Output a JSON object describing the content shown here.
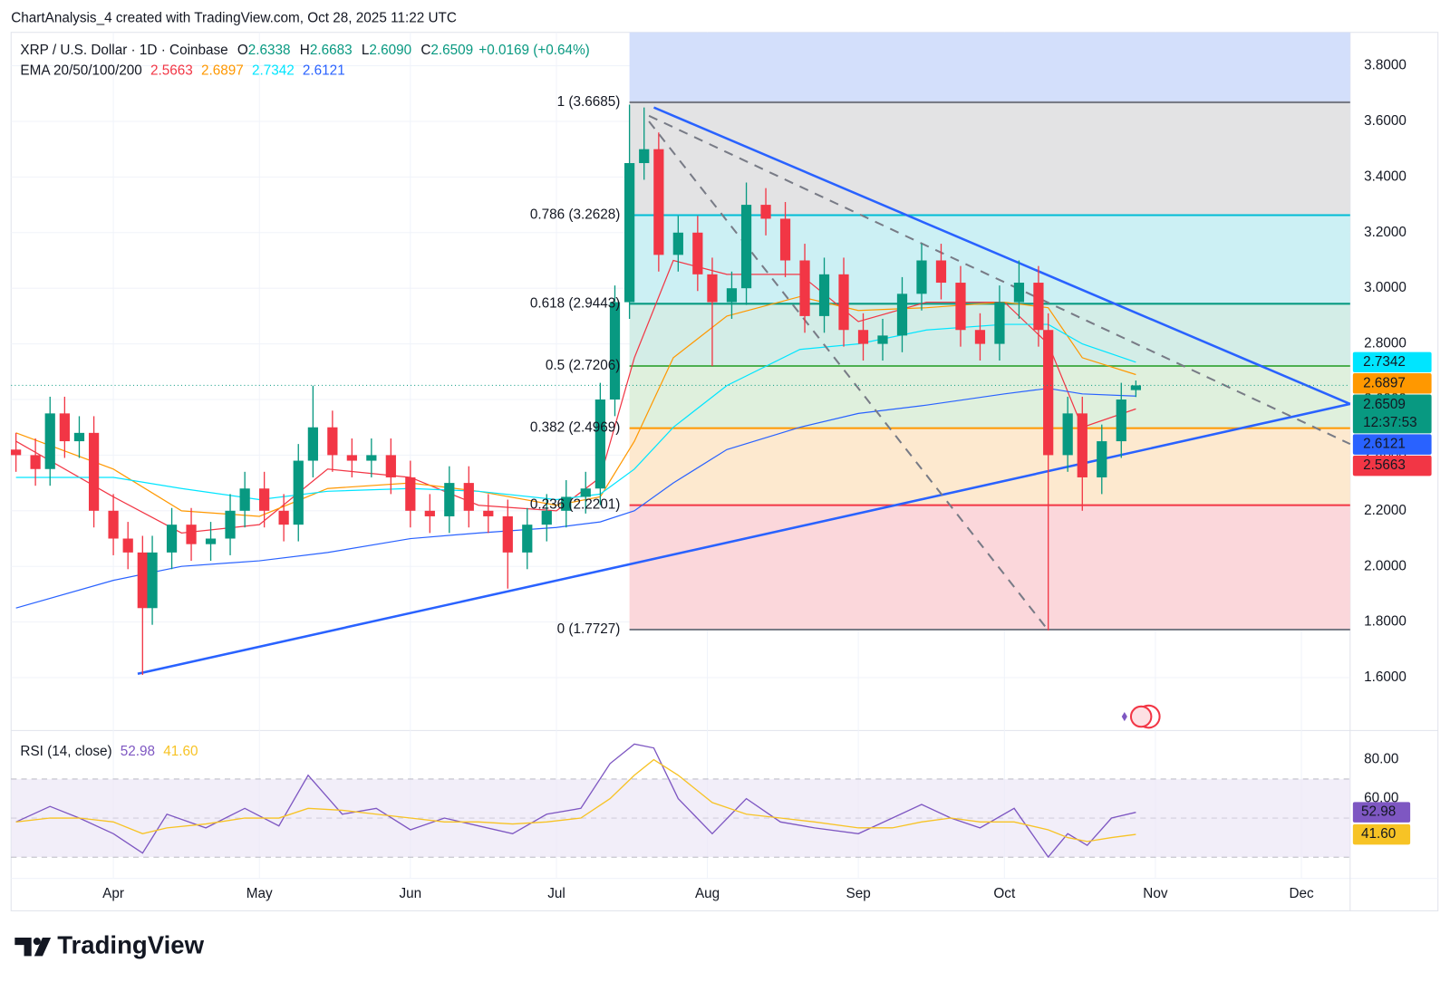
{
  "chart_data": {
    "type": "candlestick",
    "header": "ChartAnalysis_4 created with TradingView.com, Oct 28, 2025 11:22 UTC",
    "legend": {
      "symbol": "XRP / U.S. Dollar · 1D · Coinbase",
      "ohlc": [
        {
          "key": "O",
          "value": 2.6338
        },
        {
          "key": "H",
          "value": 2.6683
        },
        {
          "key": "L",
          "value": 2.609,
          "label": "2.6090"
        },
        {
          "key": "C",
          "value": 2.6509
        }
      ],
      "change": "+0.0169 (+0.64%)",
      "color": "#089981"
    },
    "xlim": [
      "2025-03-11",
      "2025-12-11"
    ],
    "xticks": [
      {
        "value": "2025-04-01",
        "label": "Apr"
      },
      {
        "value": "2025-05-01",
        "label": "May"
      },
      {
        "value": "2025-06-01",
        "label": "Jun"
      },
      {
        "value": "2025-07-01",
        "label": "Jul"
      },
      {
        "value": "2025-08-01",
        "label": "Aug"
      },
      {
        "value": "2025-09-01",
        "label": "Sep"
      },
      {
        "value": "2025-10-01",
        "label": "Oct"
      },
      {
        "value": "2025-11-01",
        "label": "Nov"
      },
      {
        "value": "2025-12-01",
        "label": "Dec"
      }
    ],
    "ylim": [
      1.41,
      3.92
    ],
    "yticks": [
      {
        "value": 1.6,
        "label": "1.6000"
      },
      {
        "value": 1.8,
        "label": "1.8000"
      },
      {
        "value": 2.0,
        "label": "2.0000"
      },
      {
        "value": 2.2,
        "label": "2.2000"
      },
      {
        "value": 2.4,
        "label": "2.4000"
      },
      {
        "value": 2.6,
        "label": "2.6000"
      },
      {
        "value": 2.8,
        "label": "2.8000"
      },
      {
        "value": 3.0,
        "label": "3.0000"
      },
      {
        "value": 3.2,
        "label": "3.2000"
      },
      {
        "value": 3.4,
        "label": "3.4000"
      },
      {
        "value": 3.6,
        "label": "3.6000"
      },
      {
        "value": 3.8,
        "label": "3.8000"
      }
    ],
    "grid": true,
    "up_color": "#089981",
    "down_color": "#f23645",
    "candles": {
      "x": [
        "2025-03-12",
        "2025-03-16",
        "2025-03-19",
        "2025-03-22",
        "2025-03-25",
        "2025-03-28",
        "2025-04-01",
        "2025-04-04",
        "2025-04-07",
        "2025-04-09",
        "2025-04-13",
        "2025-04-17",
        "2025-04-21",
        "2025-04-25",
        "2025-04-28",
        "2025-05-02",
        "2025-05-06",
        "2025-05-09",
        "2025-05-12",
        "2025-05-16",
        "2025-05-20",
        "2025-05-24",
        "2025-05-28",
        "2025-06-01",
        "2025-06-05",
        "2025-06-09",
        "2025-06-13",
        "2025-06-17",
        "2025-06-21",
        "2025-06-25",
        "2025-06-29",
        "2025-07-03",
        "2025-07-07",
        "2025-07-10",
        "2025-07-13",
        "2025-07-16",
        "2025-07-19",
        "2025-07-22",
        "2025-07-26",
        "2025-07-30",
        "2025-08-02",
        "2025-08-06",
        "2025-08-09",
        "2025-08-13",
        "2025-08-17",
        "2025-08-21",
        "2025-08-25",
        "2025-08-29",
        "2025-09-02",
        "2025-09-06",
        "2025-09-10",
        "2025-09-14",
        "2025-09-18",
        "2025-09-22",
        "2025-09-26",
        "2025-09-30",
        "2025-10-04",
        "2025-10-08",
        "2025-10-10",
        "2025-10-14",
        "2025-10-17",
        "2025-10-21",
        "2025-10-25",
        "2025-10-28"
      ],
      "open": [
        2.42,
        2.4,
        2.35,
        2.55,
        2.45,
        2.48,
        2.2,
        2.1,
        2.05,
        1.85,
        2.05,
        2.15,
        2.08,
        2.1,
        2.2,
        2.28,
        2.2,
        2.15,
        2.38,
        2.5,
        2.4,
        2.38,
        2.4,
        2.32,
        2.2,
        2.18,
        2.3,
        2.2,
        2.18,
        2.05,
        2.15,
        2.2,
        2.25,
        2.28,
        2.6,
        2.95,
        3.45,
        3.5,
        3.12,
        3.2,
        3.05,
        2.95,
        3.0,
        3.3,
        3.25,
        3.1,
        2.9,
        3.05,
        2.85,
        2.8,
        2.83,
        2.98,
        3.1,
        3.02,
        2.85,
        2.8,
        2.95,
        3.02,
        2.85,
        2.4,
        2.55,
        2.32,
        2.45,
        2.6338
      ],
      "high": [
        2.48,
        2.46,
        2.61,
        2.61,
        2.54,
        2.54,
        2.26,
        2.16,
        2.11,
        2.11,
        2.21,
        2.21,
        2.16,
        2.26,
        2.34,
        2.34,
        2.26,
        2.44,
        2.65,
        2.56,
        2.46,
        2.46,
        2.46,
        2.38,
        2.26,
        2.36,
        2.36,
        2.26,
        2.24,
        2.21,
        2.26,
        2.31,
        2.34,
        2.66,
        3.01,
        3.66,
        3.65,
        3.56,
        3.26,
        3.26,
        3.11,
        3.06,
        3.38,
        3.36,
        3.31,
        3.16,
        3.11,
        3.11,
        2.91,
        2.89,
        3.04,
        3.16,
        3.16,
        3.08,
        2.91,
        3.01,
        3.1,
        3.08,
        2.91,
        2.61,
        2.61,
        2.51,
        2.66,
        2.6683
      ],
      "low": [
        2.34,
        2.29,
        2.29,
        2.39,
        2.39,
        2.14,
        2.04,
        1.99,
        1.61,
        1.79,
        1.99,
        2.02,
        2.02,
        2.04,
        2.14,
        2.14,
        2.09,
        2.09,
        2.32,
        2.34,
        2.32,
        2.32,
        2.26,
        2.14,
        2.12,
        2.12,
        2.14,
        2.12,
        1.92,
        1.99,
        2.09,
        2.14,
        2.19,
        2.22,
        2.54,
        2.89,
        3.39,
        3.06,
        3.06,
        2.99,
        2.72,
        2.89,
        2.94,
        3.19,
        3.04,
        2.84,
        2.84,
        2.79,
        2.74,
        2.74,
        2.77,
        2.92,
        2.96,
        2.79,
        2.74,
        2.74,
        2.89,
        2.79,
        1.77,
        2.34,
        2.2,
        2.26,
        2.39,
        2.609
      ],
      "close": [
        2.4,
        2.35,
        2.55,
        2.45,
        2.48,
        2.2,
        2.1,
        2.05,
        1.85,
        2.05,
        2.15,
        2.08,
        2.1,
        2.2,
        2.28,
        2.2,
        2.15,
        2.38,
        2.5,
        2.4,
        2.38,
        2.4,
        2.32,
        2.2,
        2.18,
        2.3,
        2.2,
        2.18,
        2.05,
        2.15,
        2.2,
        2.25,
        2.28,
        2.6,
        2.95,
        3.45,
        3.5,
        3.12,
        3.2,
        3.05,
        2.95,
        3.0,
        3.3,
        3.25,
        3.1,
        2.9,
        3.05,
        2.85,
        2.8,
        2.83,
        2.98,
        3.1,
        3.02,
        2.85,
        2.8,
        2.95,
        3.02,
        2.85,
        2.4,
        2.55,
        2.32,
        2.45,
        2.6,
        2.6509
      ]
    },
    "last_price": {
      "value": 2.6509,
      "countdown": "12:37:53",
      "color": "#089981"
    },
    "ema": {
      "label": "EMA 20/50/100/200",
      "x": [
        "2025-03-12",
        "2025-04-01",
        "2025-04-15",
        "2025-05-01",
        "2025-05-15",
        "2025-06-01",
        "2025-06-15",
        "2025-07-01",
        "2025-07-10",
        "2025-07-17",
        "2025-07-25",
        "2025-08-05",
        "2025-08-20",
        "2025-09-01",
        "2025-09-15",
        "2025-10-01",
        "2025-10-10",
        "2025-10-17",
        "2025-10-28"
      ],
      "series": [
        {
          "color": "#f23645",
          "values": [
            2.45,
            2.25,
            2.12,
            2.15,
            2.35,
            2.32,
            2.22,
            2.2,
            2.32,
            2.75,
            3.1,
            3.05,
            3.05,
            2.88,
            2.95,
            2.95,
            2.8,
            2.5,
            2.5663
          ]
        },
        {
          "color": "#ff9800",
          "values": [
            2.48,
            2.35,
            2.2,
            2.18,
            2.28,
            2.3,
            2.27,
            2.22,
            2.25,
            2.45,
            2.75,
            2.9,
            2.97,
            2.92,
            2.93,
            2.95,
            2.93,
            2.75,
            2.6897
          ]
        },
        {
          "color": "#00e5ff",
          "values": [
            2.32,
            2.32,
            2.28,
            2.24,
            2.27,
            2.28,
            2.27,
            2.24,
            2.26,
            2.35,
            2.5,
            2.65,
            2.78,
            2.8,
            2.85,
            2.87,
            2.87,
            2.8,
            2.7342
          ]
        },
        {
          "color": "#2962ff",
          "values": [
            1.85,
            1.95,
            2.0,
            2.02,
            2.05,
            2.1,
            2.12,
            2.14,
            2.16,
            2.2,
            2.3,
            2.42,
            2.5,
            2.55,
            2.58,
            2.62,
            2.64,
            2.62,
            2.6121
          ]
        }
      ]
    },
    "fibonacci": {
      "start": "2025-07-16",
      "fill_above": "#d3dffb",
      "levels": [
        {
          "ratio": 1,
          "price": 3.6685,
          "label": "1 (3.6685)",
          "color": "#787b86",
          "fill": "#e3e3e4"
        },
        {
          "ratio": 0.786,
          "price": 3.2628,
          "label": "0.786 (3.2628)",
          "color": "#00bcd4",
          "fill": "#ccf0f4"
        },
        {
          "ratio": 0.618,
          "price": 2.9443,
          "label": "0.618 (2.9443)",
          "color": "#089981",
          "fill": "#d3ede7"
        },
        {
          "ratio": 0.5,
          "price": 2.7206,
          "label": "0.5 (2.7206)",
          "color": "#4caf50",
          "fill": "#dff0dd"
        },
        {
          "ratio": 0.382,
          "price": 2.4969,
          "label": "0.382 (2.4969)",
          "color": "#ff9800",
          "fill": "#fde9cf"
        },
        {
          "ratio": 0.236,
          "price": 2.2201,
          "label": "0.236 (2.2201)",
          "color": "#f23645",
          "fill": "#fbd7db"
        },
        {
          "ratio": 0,
          "price": 1.7727,
          "label": "0 (1.7727)",
          "color": "#787b86",
          "fill": "#fbd7db"
        }
      ]
    },
    "trendlines": [
      {
        "color": "#2962ff",
        "dashed": false,
        "x": [
          "2025-04-06",
          "2025-12-11"
        ],
        "y": [
          1.614,
          2.584
        ]
      },
      {
        "color": "#2962ff",
        "dashed": false,
        "x": [
          "2025-07-21",
          "2025-12-11"
        ],
        "y": [
          3.65,
          2.584
        ]
      },
      {
        "color": "#787b86",
        "dashed": true,
        "x": [
          "2025-07-20",
          "2025-12-11"
        ],
        "y": [
          3.62,
          2.44
        ]
      },
      {
        "color": "#787b86",
        "dashed": true,
        "x": [
          "2025-07-20",
          "2025-10-10"
        ],
        "y": [
          3.6,
          1.77
        ]
      }
    ],
    "rsi": {
      "label": "RSI (14, close)",
      "ylim": [
        19,
        95
      ],
      "yticks": [
        {
          "value": 80,
          "label": "80.00"
        },
        {
          "value": 60,
          "label": "60.00"
        }
      ],
      "levels": [
        70,
        50,
        30
      ],
      "band_color": "#ede7f6",
      "x": [
        "2025-03-12",
        "2025-03-19",
        "2025-03-25",
        "2025-04-01",
        "2025-04-07",
        "2025-04-12",
        "2025-04-20",
        "2025-04-28",
        "2025-05-05",
        "2025-05-11",
        "2025-05-18",
        "2025-05-25",
        "2025-06-01",
        "2025-06-08",
        "2025-06-15",
        "2025-06-22",
        "2025-06-29",
        "2025-07-06",
        "2025-07-12",
        "2025-07-17",
        "2025-07-21",
        "2025-07-26",
        "2025-08-02",
        "2025-08-09",
        "2025-08-16",
        "2025-08-23",
        "2025-09-01",
        "2025-09-08",
        "2025-09-14",
        "2025-09-20",
        "2025-09-26",
        "2025-10-03",
        "2025-10-10",
        "2025-10-14",
        "2025-10-18",
        "2025-10-23",
        "2025-10-28"
      ],
      "series": [
        {
          "color": "#7e57c2",
          "legend_value": "52.98",
          "values": [
            48,
            56,
            50,
            42,
            32,
            52,
            45,
            55,
            46,
            72,
            52,
            55,
            44,
            50,
            46,
            42,
            52,
            55,
            78,
            88,
            86,
            60,
            42,
            60,
            48,
            45,
            42,
            50,
            57,
            50,
            45,
            55,
            30,
            42,
            36,
            50,
            52.98
          ]
        },
        {
          "color": "#f7c325",
          "legend_value": "41.60",
          "values": [
            48,
            50,
            50,
            48,
            42,
            45,
            47,
            50,
            50,
            55,
            54,
            52,
            50,
            48,
            48,
            47,
            48,
            50,
            60,
            72,
            80,
            72,
            58,
            52,
            50,
            48,
            45,
            45,
            48,
            50,
            48,
            48,
            44,
            40,
            38,
            40,
            41.6
          ]
        }
      ]
    }
  },
  "footer": {
    "brand": "TradingView"
  }
}
